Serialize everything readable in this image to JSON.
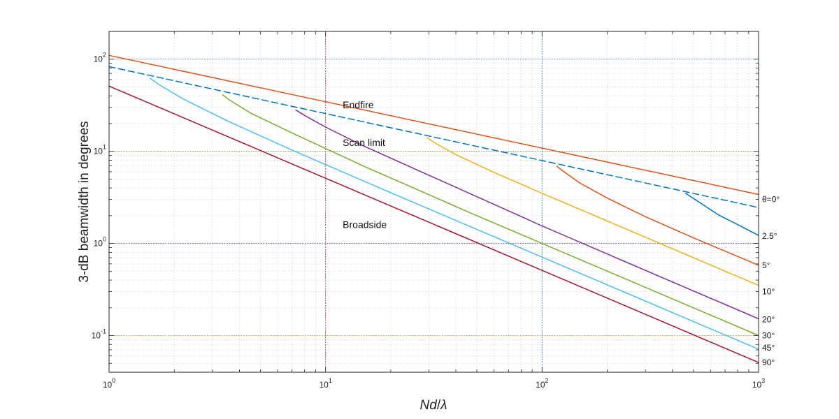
{
  "chart_data": {
    "type": "line",
    "xscale": "log",
    "yscale": "log",
    "xlim": [
      1,
      1000
    ],
    "ylim": [
      0.04,
      200
    ],
    "grid": true,
    "xlabel_main": "Nd",
    "xlabel_sep": "/",
    "xlabel_sym": "λ",
    "ylabel": "3-dB beamwidth in degrees",
    "x_ticks": [
      {
        "value": 1,
        "base": "10",
        "exp": "0"
      },
      {
        "value": 10,
        "base": "10",
        "exp": "1"
      },
      {
        "value": 100,
        "base": "10",
        "exp": "2"
      },
      {
        "value": 1000,
        "base": "10",
        "exp": "3"
      }
    ],
    "y_ticks": [
      {
        "value": 0.1,
        "base": "10",
        "exp": "-1"
      },
      {
        "value": 1,
        "base": "10",
        "exp": "0"
      },
      {
        "value": 10,
        "base": "10",
        "exp": "1"
      },
      {
        "value": 100,
        "base": "10",
        "exp": "2"
      }
    ],
    "reference_lines": [
      {
        "axis": "x",
        "value": 10,
        "color": "#b03050"
      },
      {
        "axis": "x",
        "value": 100,
        "color": "#3a7fd0"
      },
      {
        "axis": "y",
        "value": 100,
        "color": "#6a9ad8"
      },
      {
        "axis": "y",
        "value": 10,
        "color": "#7aa83a"
      },
      {
        "axis": "y",
        "value": 1,
        "color": "#7a4aa8"
      },
      {
        "axis": "y",
        "value": 0.1,
        "color": "#e0a040"
      }
    ],
    "series": [
      {
        "color": "#d95319",
        "style": "solid",
        "x": [
          1,
          1000
        ],
        "y": [
          110,
          3.4
        ]
      },
      {
        "color": "#0072bd",
        "style": "dashed",
        "x": [
          1,
          1000
        ],
        "y": [
          83,
          2.45
        ]
      },
      {
        "color": "#0072bd",
        "style": "solid",
        "x": [
          460,
          520,
          650,
          800,
          1000
        ],
        "y": [
          3.5,
          2.9,
          2.05,
          1.6,
          1.22
        ]
      },
      {
        "color": "#d95319",
        "style": "solid",
        "x": [
          117,
          125,
          150,
          200,
          300,
          500,
          1000
        ],
        "y": [
          6.9,
          6.1,
          4.5,
          3.1,
          1.95,
          1.15,
          0.58
        ]
      },
      {
        "color": "#edb120",
        "style": "solid",
        "x": [
          29.5,
          32,
          40,
          60,
          100,
          200,
          500,
          1000
        ],
        "y": [
          14,
          12.3,
          9.2,
          5.9,
          3.5,
          1.75,
          0.7,
          0.35
        ]
      },
      {
        "color": "#7e2f8e",
        "style": "solid",
        "x": [
          7.3,
          8,
          10,
          15,
          30,
          100,
          300,
          1000
        ],
        "y": [
          28,
          24.5,
          18.3,
          11.4,
          5.5,
          1.55,
          0.51,
          0.152
        ]
      },
      {
        "color": "#77ac30",
        "style": "solid",
        "x": [
          3.35,
          3.6,
          4.5,
          7,
          15,
          50,
          200,
          1000
        ],
        "y": [
          41,
          36,
          26,
          15.8,
          6.9,
          2.0,
          0.5,
          0.1
        ]
      },
      {
        "color": "#4dbeee",
        "style": "solid",
        "x": [
          1.55,
          1.7,
          2.2,
          3.5,
          7,
          20,
          100,
          1000
        ],
        "y": [
          62,
          53,
          37,
          21.5,
          10.3,
          3.55,
          0.71,
          0.071
        ]
      },
      {
        "color": "#a2142f",
        "style": "solid",
        "x": [
          1,
          1000
        ],
        "y": [
          51,
          0.051
        ]
      }
    ],
    "annotations": [
      {
        "text": "Endfire",
        "x": 12,
        "y": 32
      },
      {
        "text": "Scan limit",
        "x": 12,
        "y": 12.5
      },
      {
        "text": "Broadside",
        "x": 12,
        "y": 1.6
      }
    ],
    "right_labels": [
      {
        "text": "θ=0°",
        "y": 3.0
      },
      {
        "text": "2.5°",
        "y": 1.2
      },
      {
        "text": "5°",
        "y": 0.58
      },
      {
        "text": "10°",
        "y": 0.3
      },
      {
        "text": "20°",
        "y": 0.15
      },
      {
        "text": "30°",
        "y": 0.1
      },
      {
        "text": "45°",
        "y": 0.074
      },
      {
        "text": "90°",
        "y": 0.051
      }
    ]
  }
}
